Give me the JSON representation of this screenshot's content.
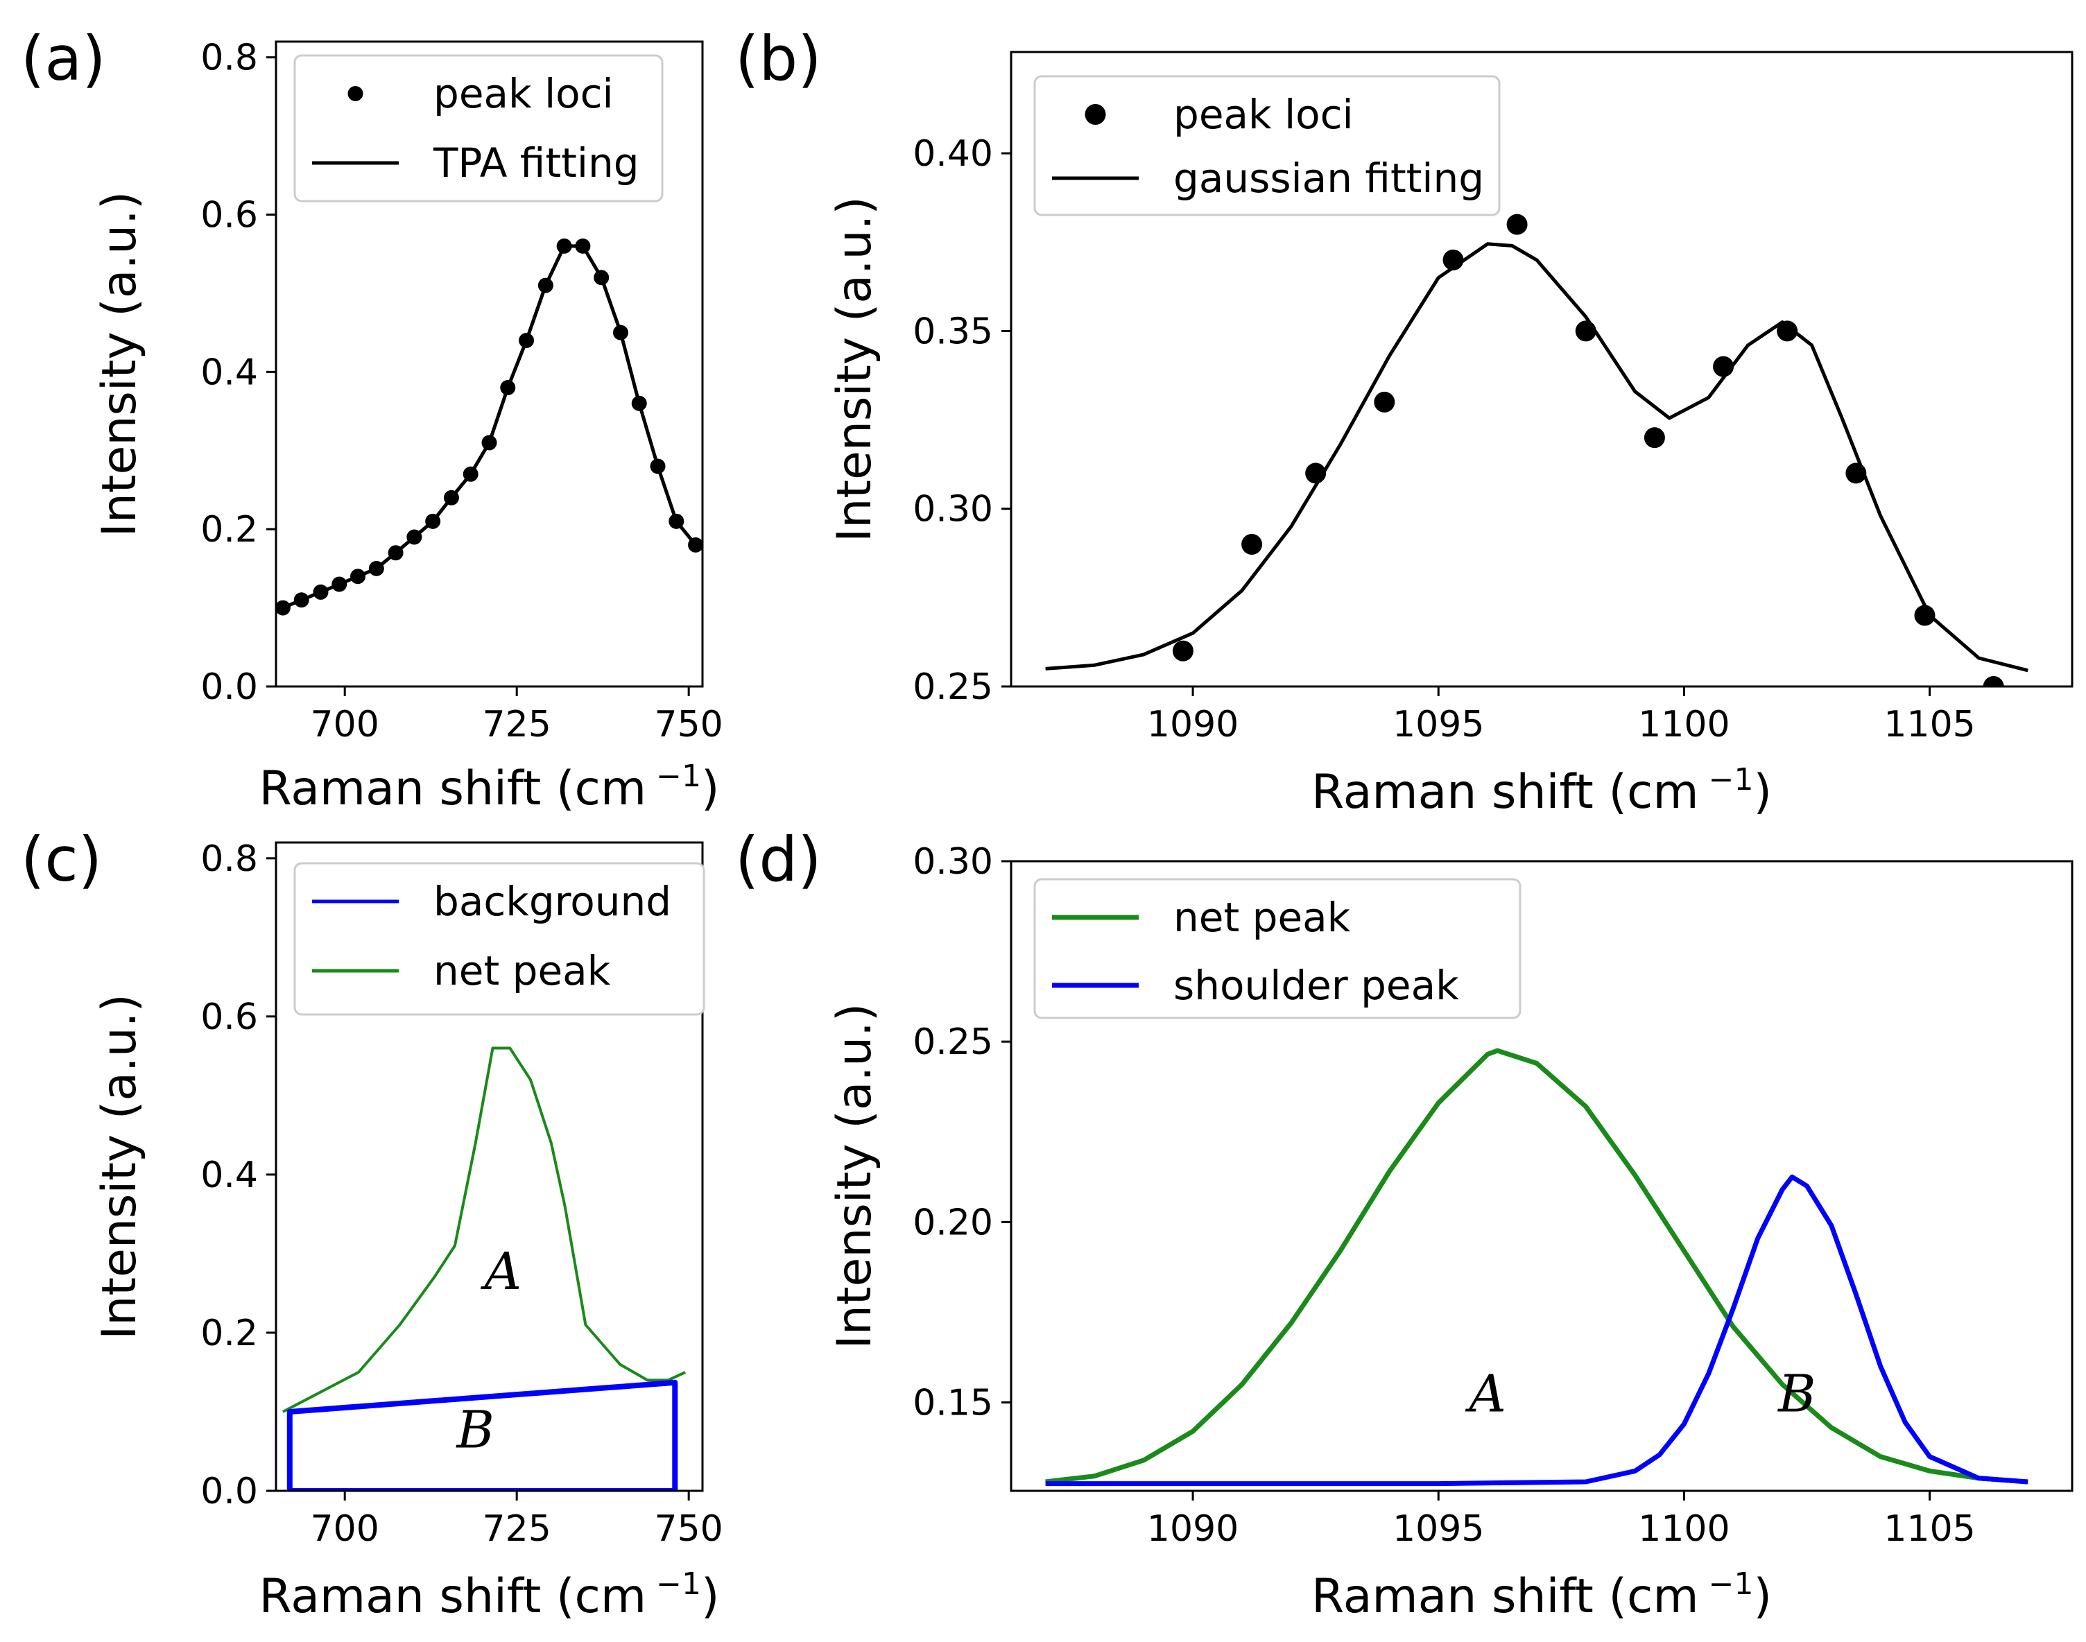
{
  "chart_data": [
    {
      "panel_label": "(a)",
      "type": "scatter",
      "xlabel": "Raman shift (cm",
      "xlabel_sup": "−1",
      "xlabel_close": ")",
      "ylabel": "Intensity (a.u.)",
      "xlim": [
        690,
        752
      ],
      "ylim": [
        0,
        0.82
      ],
      "xticks": [
        700,
        725,
        750
      ],
      "xtick_labels": [
        "700",
        "725",
        "750"
      ],
      "yticks": [
        0,
        0.2,
        0.4,
        0.6,
        0.8
      ],
      "ytick_labels": [
        "0.0",
        "0.2",
        "0.4",
        "0.6",
        "0.8"
      ],
      "legend": [
        {
          "label": "peak loci",
          "style": "dot",
          "color": "#000000"
        },
        {
          "label": "TPA fitting",
          "style": "line",
          "color": "#000000"
        }
      ],
      "series": [
        {
          "name": "peak loci",
          "kind": "points",
          "color": "#000000",
          "x": [
            691.0,
            693.7,
            696.5,
            699.2,
            701.9,
            704.6,
            707.4,
            710.1,
            712.8,
            715.5,
            718.3,
            721.0,
            723.7,
            726.4,
            729.2,
            731.9,
            734.6,
            737.3,
            740.1,
            742.8,
            745.5,
            748.2,
            751.0
          ],
          "y": [
            0.1,
            0.11,
            0.12,
            0.13,
            0.14,
            0.15,
            0.17,
            0.19,
            0.21,
            0.24,
            0.27,
            0.31,
            0.38,
            0.44,
            0.51,
            0.56,
            0.56,
            0.52,
            0.45,
            0.36,
            0.28,
            0.21,
            0.18
          ]
        },
        {
          "name": "TPA fitting",
          "kind": "line",
          "color": "#000000",
          "x": [
            691.0,
            693.7,
            696.5,
            699.2,
            701.9,
            704.6,
            707.4,
            710.1,
            712.8,
            715.5,
            718.3,
            721.0,
            723.7,
            726.4,
            729.2,
            731.9,
            734.6,
            737.3,
            740.1,
            742.8,
            745.5,
            748.2,
            751.0
          ],
          "y": [
            0.1,
            0.11,
            0.12,
            0.13,
            0.14,
            0.15,
            0.17,
            0.19,
            0.21,
            0.24,
            0.27,
            0.31,
            0.38,
            0.44,
            0.51,
            0.56,
            0.56,
            0.52,
            0.45,
            0.36,
            0.28,
            0.21,
            0.18
          ]
        }
      ]
    },
    {
      "panel_label": "(b)",
      "type": "scatter",
      "xlabel": "Raman shift (cm",
      "xlabel_sup": "−1",
      "xlabel_close": ")",
      "ylabel": "Intensity (a.u.)",
      "xlim": [
        1086.3,
        1107.9
      ],
      "ylim": [
        0.25,
        0.4285
      ],
      "xticks": [
        1090,
        1095,
        1100,
        1105
      ],
      "xtick_labels": [
        "1090",
        "1095",
        "1100",
        "1105"
      ],
      "yticks": [
        0.25,
        0.3,
        0.35,
        0.4
      ],
      "ytick_labels": [
        "0.25",
        "0.30",
        "0.35",
        "0.40"
      ],
      "legend": [
        {
          "label": "peak loci",
          "style": "dot",
          "color": "#000000"
        },
        {
          "label": "gaussian fitting",
          "style": "line",
          "color": "#000000"
        }
      ],
      "series": [
        {
          "name": "peak loci",
          "kind": "points",
          "color": "#000000",
          "x": [
            1089.8,
            1091.2,
            1092.5,
            1093.9,
            1095.3,
            1096.6,
            1098.0,
            1099.4,
            1100.8,
            1102.1,
            1103.5,
            1104.9,
            1106.3
          ],
          "y": [
            0.26,
            0.29,
            0.31,
            0.33,
            0.37,
            0.38,
            0.35,
            0.32,
            0.34,
            0.35,
            0.31,
            0.27,
            0.25
          ]
        },
        {
          "name": "gaussian fitting",
          "kind": "line",
          "color": "#000000",
          "x": [
            1087.0,
            1088.0,
            1089.0,
            1090.0,
            1091.0,
            1092.0,
            1093.0,
            1094.0,
            1095.0,
            1096.0,
            1096.5,
            1097.0,
            1098.0,
            1099.0,
            1099.7,
            1100.5,
            1101.3,
            1102.0,
            1102.6,
            1103.2,
            1104.0,
            1105.0,
            1106.0,
            1107.0
          ],
          "y": [
            0.255,
            0.256,
            0.259,
            0.265,
            0.277,
            0.295,
            0.318,
            0.343,
            0.365,
            0.3745,
            0.374,
            0.37,
            0.354,
            0.333,
            0.3255,
            0.3313,
            0.346,
            0.3525,
            0.346,
            0.326,
            0.298,
            0.27,
            0.258,
            0.2545
          ]
        }
      ]
    },
    {
      "panel_label": "(c)",
      "type": "line",
      "xlabel": "Raman shift (cm",
      "xlabel_sup": "−1",
      "xlabel_close": ")",
      "ylabel": "Intensity (a.u.)",
      "xlim": [
        690,
        752
      ],
      "ylim": [
        0,
        0.82
      ],
      "xticks": [
        700,
        725,
        750
      ],
      "xtick_labels": [
        "700",
        "725",
        "750"
      ],
      "yticks": [
        0,
        0.2,
        0.4,
        0.6,
        0.8
      ],
      "ytick_labels": [
        "0.0",
        "0.2",
        "0.4",
        "0.6",
        "0.8"
      ],
      "legend": [
        {
          "label": "background",
          "style": "line",
          "color": "#0000ff"
        },
        {
          "label": "net peak",
          "style": "line",
          "color": "#1a8a1a"
        }
      ],
      "annotations": [
        {
          "text": "A",
          "x": 723,
          "y": 0.255
        },
        {
          "text": "B",
          "x": 719,
          "y": 0.055
        }
      ],
      "series": [
        {
          "name": "net peak",
          "kind": "line",
          "color": "#1a8a1a",
          "x": [
            691,
            702,
            708,
            713,
            716,
            719,
            721.5,
            724,
            727,
            730,
            732,
            735,
            740,
            744,
            747,
            749.5
          ],
          "y": [
            0.1,
            0.15,
            0.21,
            0.27,
            0.31,
            0.44,
            0.56,
            0.56,
            0.52,
            0.44,
            0.36,
            0.21,
            0.16,
            0.14,
            0.14,
            0.15
          ]
        },
        {
          "name": "background",
          "kind": "polygon",
          "color": "#0000ff",
          "x": [
            692,
            692,
            748,
            748,
            692
          ],
          "y": [
            0,
            0.1,
            0.137,
            0,
            0
          ]
        }
      ]
    },
    {
      "panel_label": "(d)",
      "type": "line",
      "xlabel": "Raman shift (cm",
      "xlabel_sup": "−1",
      "xlabel_close": ")",
      "ylabel": "Intensity (a.u.)",
      "xlim": [
        1086.3,
        1107.9
      ],
      "ylim": [
        0.1255,
        0.3
      ],
      "xticks": [
        1090,
        1095,
        1100,
        1105
      ],
      "xtick_labels": [
        "1090",
        "1095",
        "1100",
        "1105"
      ],
      "yticks": [
        0.15,
        0.2,
        0.25,
        0.3
      ],
      "ytick_labels": [
        "0.15",
        "0.20",
        "0.25",
        "0.30"
      ],
      "legend": [
        {
          "label": "net peak",
          "style": "line",
          "color": "#1a8a1a"
        },
        {
          "label": "shoulder peak",
          "style": "line",
          "color": "#0000ff"
        }
      ],
      "annotations": [
        {
          "text": "A",
          "x": 1096.0,
          "y": 0.1475
        },
        {
          "text": "B",
          "x": 1102.3,
          "y": 0.1475
        }
      ],
      "series": [
        {
          "name": "net peak",
          "kind": "line",
          "color": "#1a8a1a",
          "x": [
            1087.0,
            1088.0,
            1089.0,
            1090.0,
            1091.0,
            1092.0,
            1093.0,
            1094.0,
            1095.0,
            1096.0,
            1096.2,
            1097.0,
            1098.0,
            1099.0,
            1100.0,
            1101.0,
            1102.0,
            1103.0,
            1104.0,
            1105.0,
            1106.0,
            1107.0
          ],
          "y": [
            0.128,
            0.1296,
            0.134,
            0.142,
            0.155,
            0.172,
            0.192,
            0.214,
            0.233,
            0.2465,
            0.2475,
            0.244,
            0.232,
            0.213,
            0.192,
            0.171,
            0.155,
            0.143,
            0.135,
            0.131,
            0.129,
            0.128
          ]
        },
        {
          "name": "shoulder peak",
          "kind": "line",
          "color": "#0000ff",
          "x": [
            1087.0,
            1095.0,
            1098.0,
            1099.0,
            1099.5,
            1100.0,
            1100.5,
            1101.0,
            1101.5,
            1102.0,
            1102.2,
            1102.5,
            1103.0,
            1103.5,
            1104.0,
            1104.5,
            1105.0,
            1106.0,
            1107.0
          ],
          "y": [
            0.1275,
            0.1275,
            0.128,
            0.131,
            0.1355,
            0.144,
            0.158,
            0.176,
            0.1955,
            0.209,
            0.2125,
            0.21,
            0.199,
            0.18,
            0.16,
            0.1445,
            0.135,
            0.129,
            0.128
          ]
        }
      ]
    }
  ]
}
